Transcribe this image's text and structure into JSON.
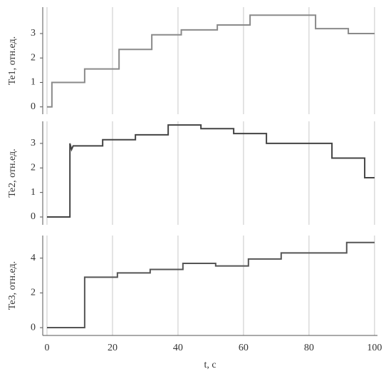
{
  "chart_data": [
    {
      "type": "line",
      "ylabel": "Te1, отн.ед.",
      "color": "#8a8a8a",
      "x": [
        0,
        1.5,
        1.5,
        11.5,
        11.5,
        22,
        22,
        32,
        32,
        41,
        41,
        52,
        52,
        62,
        62,
        82,
        82,
        92,
        92,
        100
      ],
      "values": [
        0,
        0,
        1.0,
        1.0,
        1.55,
        1.55,
        2.35,
        2.35,
        2.95,
        2.95,
        3.15,
        3.15,
        3.35,
        3.35,
        3.75,
        3.75,
        3.2,
        3.2,
        3.0,
        3.0
      ],
      "xlim": [
        -1.3,
        100.9
      ],
      "ylim": [
        -0.3,
        4.08
      ],
      "xticks": [
        0,
        20,
        40,
        60,
        80,
        100
      ],
      "yticks": [
        0,
        1,
        2,
        3
      ],
      "grid": true,
      "xtick_labels": false
    },
    {
      "type": "line",
      "ylabel": "Te2, отн.ед.",
      "color": "#444444",
      "x": [
        0,
        7,
        7,
        7.5,
        8,
        17,
        17,
        27,
        27,
        37,
        37,
        47,
        47,
        57,
        57,
        67,
        67,
        87,
        87,
        97,
        97,
        100
      ],
      "values": [
        0,
        0,
        3.0,
        2.75,
        2.9,
        2.9,
        3.15,
        3.15,
        3.35,
        3.35,
        3.75,
        3.75,
        3.6,
        3.6,
        3.4,
        3.4,
        3.0,
        3.0,
        2.4,
        2.4,
        1.6,
        1.6
      ],
      "xlim": [
        -1.3,
        100.9
      ],
      "ylim": [
        -0.32,
        3.9
      ],
      "xticks": [
        0,
        20,
        40,
        60,
        80,
        100
      ],
      "yticks": [
        0,
        1,
        2,
        3
      ],
      "grid": true,
      "xtick_labels": false
    },
    {
      "type": "line",
      "ylabel": "Te3, отн.ед.",
      "xlabel": "t, c",
      "color": "#555555",
      "x": [
        0,
        11.5,
        11.5,
        21.5,
        21.5,
        31.5,
        31.5,
        41.5,
        41.5,
        51.5,
        51.5,
        61.5,
        61.5,
        71.5,
        71.5,
        91.5,
        91.5,
        100
      ],
      "values": [
        0,
        0,
        2.9,
        2.9,
        3.15,
        3.15,
        3.35,
        3.35,
        3.7,
        3.7,
        3.55,
        3.55,
        3.95,
        3.95,
        4.3,
        4.3,
        4.9,
        4.9
      ],
      "xlim": [
        -1.3,
        100.9
      ],
      "ylim": [
        -0.45,
        5.3
      ],
      "xticks": [
        0,
        20,
        40,
        60,
        80,
        100
      ],
      "yticks": [
        0,
        2,
        4
      ],
      "grid": true,
      "xtick_labels": true
    }
  ]
}
